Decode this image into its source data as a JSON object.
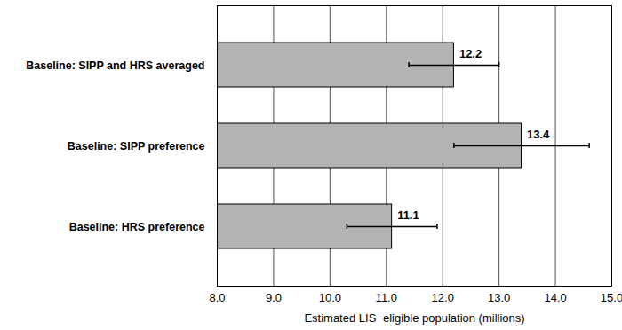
{
  "chart_data": {
    "type": "bar",
    "orientation": "horizontal",
    "categories": [
      "Baseline: SIPP and HRS averaged",
      "Baseline: SIPP preference",
      "Baseline: HRS preference"
    ],
    "values": [
      12.2,
      13.4,
      11.1
    ],
    "error_low": [
      11.4,
      12.2,
      10.3
    ],
    "error_high": [
      13.0,
      14.6,
      11.9
    ],
    "color": "#b3b3b3",
    "x_label": "Estimated LIS−eligible population (millions)",
    "xlim": [
      8,
      15
    ],
    "xticks": [
      8,
      9,
      10,
      11,
      12,
      13,
      14,
      15
    ],
    "grid": true,
    "data_labels": true
  }
}
